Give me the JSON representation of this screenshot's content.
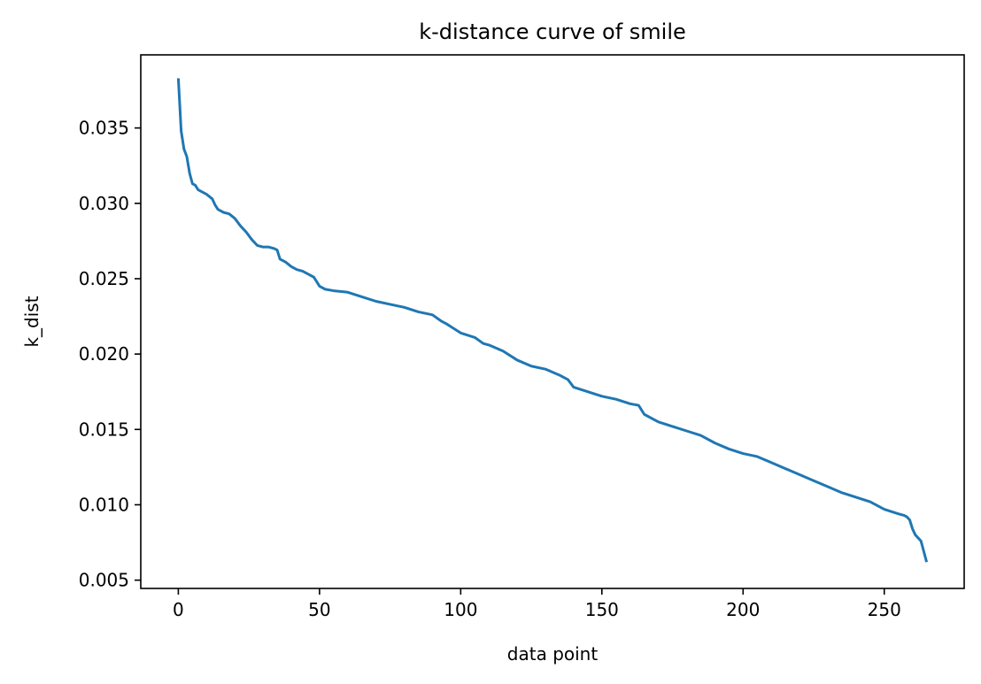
{
  "chart_data": {
    "type": "line",
    "title": "k-distance curve of smile",
    "xlabel": "data point",
    "ylabel": "k_dist",
    "xlim": [
      -13.3,
      278.3
    ],
    "ylim": [
      0.00445,
      0.03985
    ],
    "xticks": [
      0,
      50,
      100,
      150,
      200,
      250
    ],
    "xtick_labels": [
      "0",
      "50",
      "100",
      "150",
      "200",
      "250"
    ],
    "yticks": [
      0.005,
      0.01,
      0.015,
      0.02,
      0.025,
      0.03,
      0.035
    ],
    "ytick_labels": [
      "0.005",
      "0.010",
      "0.015",
      "0.020",
      "0.025",
      "0.030",
      "0.035"
    ],
    "grid": false,
    "series": [
      {
        "color": "#1f77b4",
        "x": [
          0,
          1,
          2,
          3,
          4,
          5,
          6,
          7,
          8,
          10,
          12,
          13,
          14,
          16,
          18,
          20,
          22,
          24,
          26,
          28,
          30,
          32,
          34,
          35,
          36,
          38,
          40,
          42,
          44,
          46,
          48,
          50,
          52,
          55,
          60,
          65,
          70,
          75,
          80,
          85,
          90,
          93,
          95,
          100,
          105,
          108,
          110,
          115,
          120,
          125,
          130,
          135,
          138,
          140,
          145,
          150,
          155,
          160,
          163,
          165,
          170,
          175,
          180,
          185,
          190,
          195,
          200,
          205,
          210,
          215,
          220,
          225,
          230,
          235,
          240,
          245,
          250,
          255,
          257,
          258,
          259,
          260,
          261,
          262,
          263,
          264,
          265
        ],
        "y": [
          0.0383,
          0.0348,
          0.0336,
          0.0331,
          0.032,
          0.0313,
          0.0312,
          0.0309,
          0.0308,
          0.0306,
          0.0303,
          0.0299,
          0.0296,
          0.0294,
          0.0293,
          0.029,
          0.0285,
          0.0281,
          0.0276,
          0.0272,
          0.0271,
          0.0271,
          0.027,
          0.0269,
          0.0263,
          0.0261,
          0.0258,
          0.0256,
          0.0255,
          0.0253,
          0.0251,
          0.0245,
          0.0243,
          0.0242,
          0.0241,
          0.0238,
          0.0235,
          0.0233,
          0.0231,
          0.0228,
          0.0226,
          0.0222,
          0.022,
          0.0214,
          0.0211,
          0.0207,
          0.0206,
          0.0202,
          0.0196,
          0.0192,
          0.019,
          0.0186,
          0.0183,
          0.0178,
          0.0175,
          0.0172,
          0.017,
          0.0167,
          0.0166,
          0.016,
          0.0155,
          0.0152,
          0.0149,
          0.0146,
          0.0141,
          0.0137,
          0.0134,
          0.0132,
          0.0128,
          0.0124,
          0.012,
          0.0116,
          0.0112,
          0.0108,
          0.0105,
          0.0102,
          0.0097,
          0.0094,
          0.0093,
          0.0092,
          0.009,
          0.0084,
          0.008,
          0.0078,
          0.0076,
          0.0069,
          0.0062
        ]
      }
    ]
  }
}
